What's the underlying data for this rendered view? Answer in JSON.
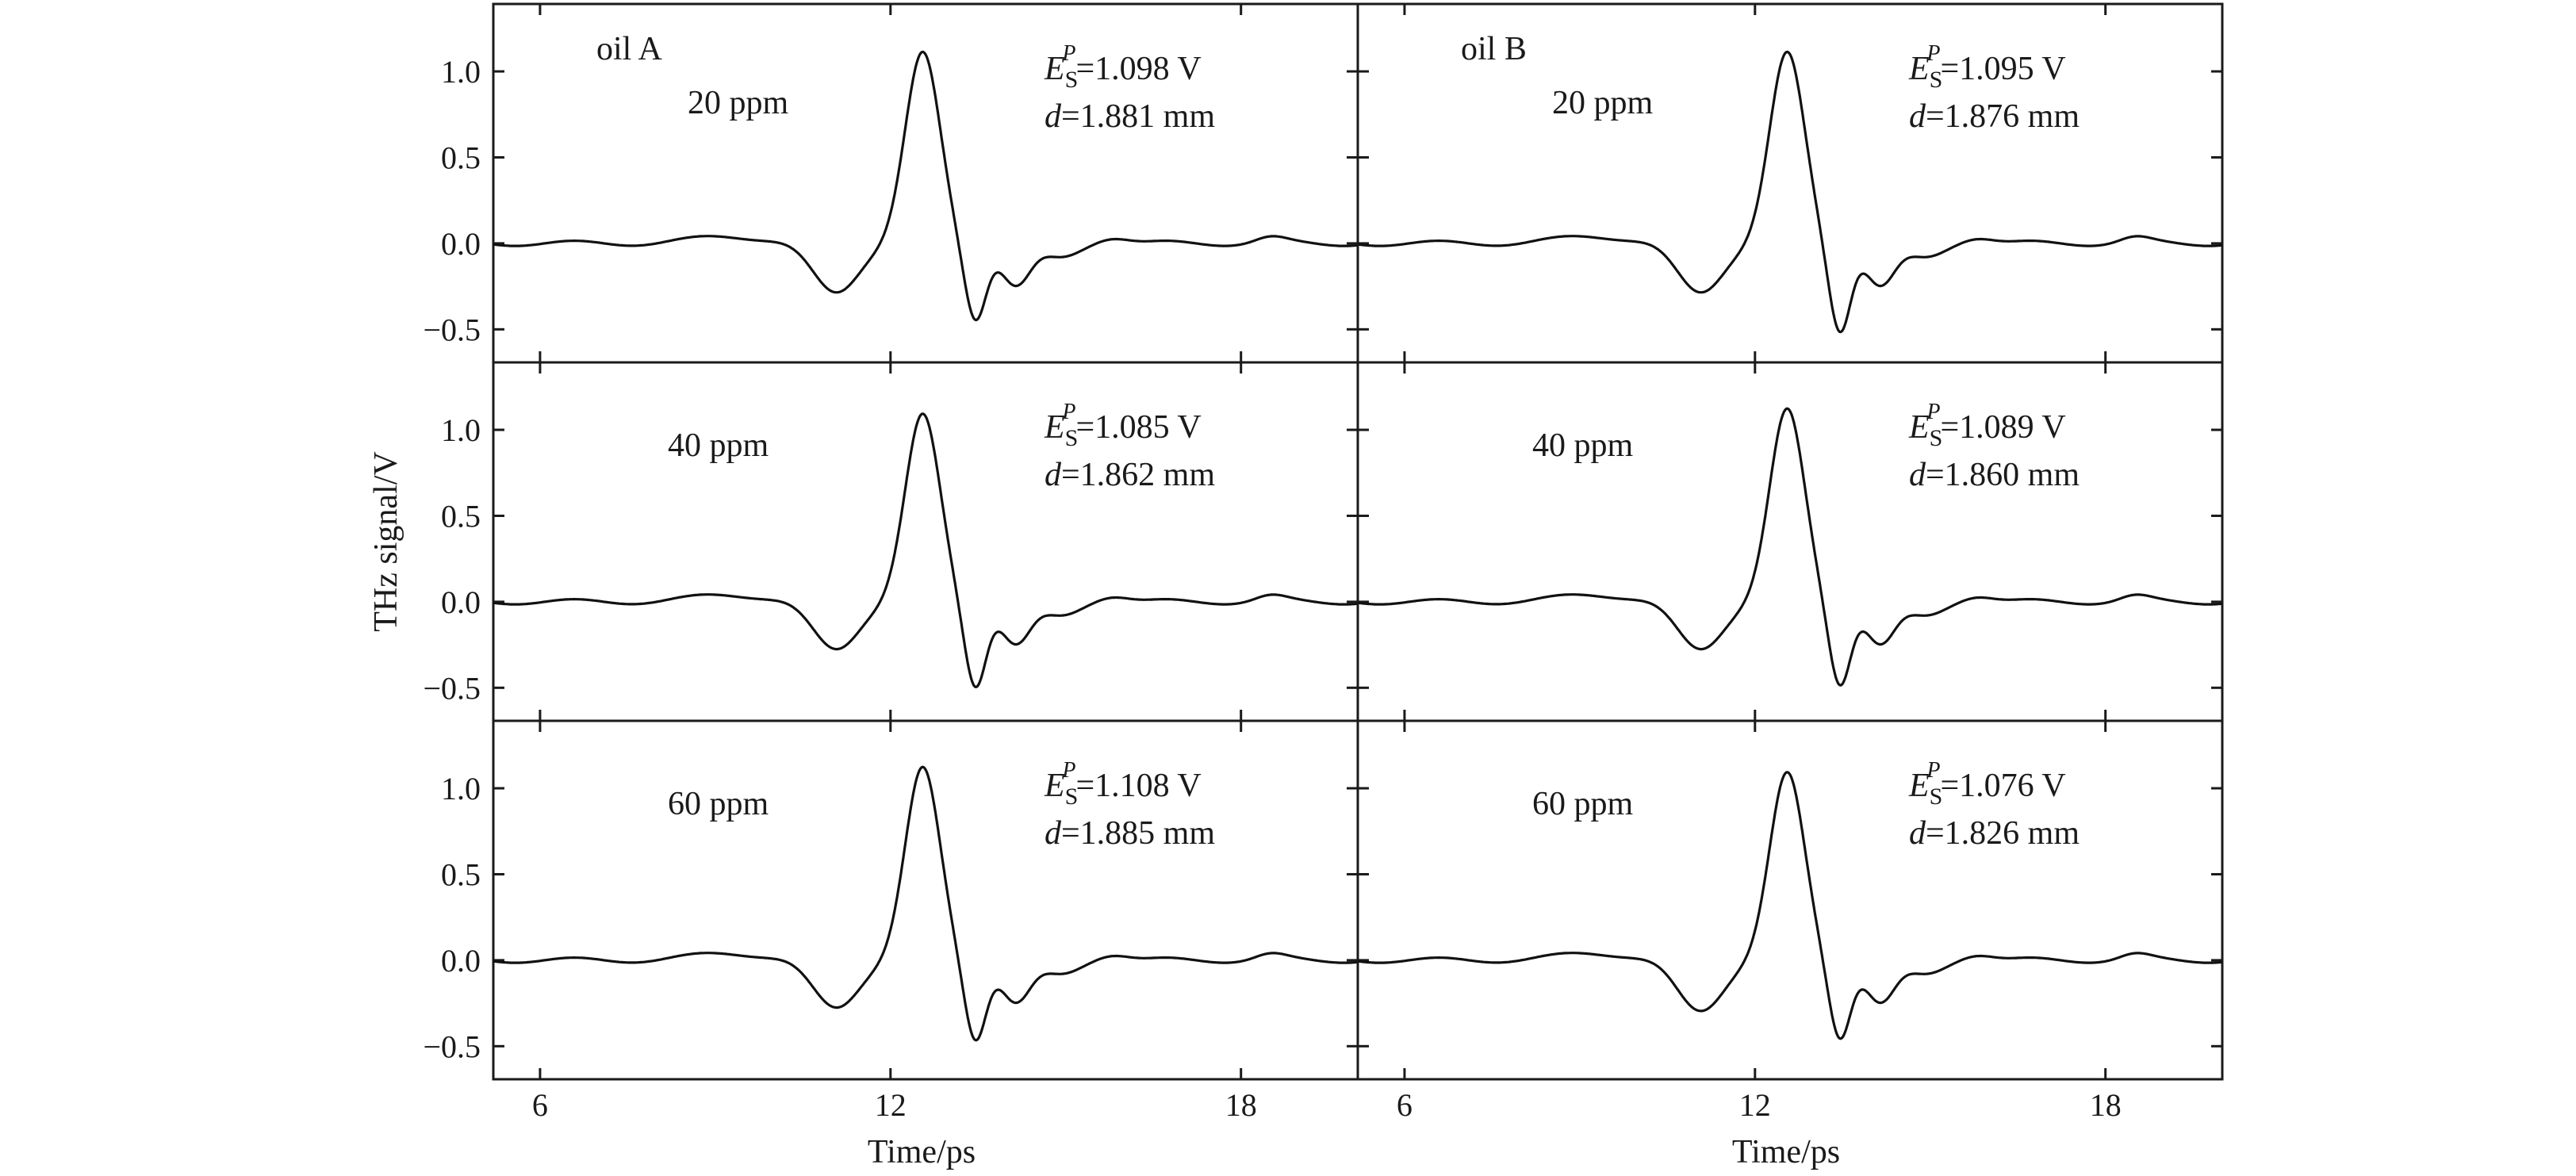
{
  "y_axis_title": "THz signal/V",
  "chart_data": [
    {
      "type": "line",
      "column_label": "oil A",
      "concentration": "20 ppm",
      "es_value": "=1.098 V",
      "d_value": "=1.881 mm",
      "peak": 1.1,
      "trough1": -0.29,
      "trough2": -0.44,
      "xlim": [
        5.2,
        20
      ],
      "ylim": [
        -0.6,
        1.3
      ],
      "xticks": [
        6,
        12,
        18
      ],
      "yticks": [
        1.0,
        0.5,
        0.0,
        -0.5
      ]
    },
    {
      "type": "line",
      "column_label": "oil B",
      "concentration": "20 ppm",
      "es_value": "=1.095 V",
      "d_value": "=1.876 mm",
      "peak": 1.1,
      "trough1": -0.29,
      "trough2": -0.51,
      "xlim": [
        5.2,
        20
      ],
      "ylim": [
        -0.6,
        1.3
      ],
      "xticks": [
        6,
        12,
        18
      ],
      "yticks": [
        1.0,
        0.5,
        0.0,
        -0.5
      ]
    },
    {
      "type": "line",
      "column_label": "",
      "concentration": "40 ppm",
      "es_value": "=1.085 V",
      "d_value": "=1.862 mm",
      "peak": 1.08,
      "trough1": -0.28,
      "trough2": -0.49,
      "xlim": [
        5.2,
        20
      ],
      "ylim": [
        -0.6,
        1.3
      ],
      "xticks": [
        6,
        12,
        18
      ],
      "yticks": [
        1.0,
        0.5,
        0.0,
        -0.5
      ]
    },
    {
      "type": "line",
      "column_label": "",
      "concentration": "40 ppm",
      "es_value": "=1.089 V",
      "d_value": "=1.860 mm",
      "peak": 1.11,
      "trough1": -0.28,
      "trough2": -0.48,
      "xlim": [
        5.2,
        20
      ],
      "ylim": [
        -0.6,
        1.3
      ],
      "xticks": [
        6,
        12,
        18
      ],
      "yticks": [
        1.0,
        0.5,
        0.0,
        -0.5
      ]
    },
    {
      "type": "line",
      "column_label": "",
      "concentration": "60 ppm",
      "es_value": "=1.108 V",
      "d_value": "=1.885 mm",
      "peak": 1.11,
      "trough1": -0.28,
      "trough2": -0.46,
      "xlim": [
        5.2,
        20
      ],
      "ylim": [
        -0.6,
        1.3
      ],
      "xticks": [
        6,
        12,
        18
      ],
      "yticks": [
        1.0,
        0.5,
        0.0,
        -0.5
      ]
    },
    {
      "type": "line",
      "column_label": "",
      "concentration": "60 ppm",
      "es_value": "=1.076 V",
      "d_value": "=1.826 mm",
      "peak": 1.08,
      "trough1": -0.3,
      "trough2": -0.45,
      "xlim": [
        5.2,
        20
      ],
      "ylim": [
        -0.6,
        1.3
      ],
      "xticks": [
        6,
        12,
        18
      ],
      "yticks": [
        1.0,
        0.5,
        0.0,
        -0.5
      ]
    }
  ],
  "x_axis_title": "Time/ps",
  "symbol_E": "E",
  "symbol_S": "S",
  "symbol_P": "P",
  "symbol_d": "d"
}
